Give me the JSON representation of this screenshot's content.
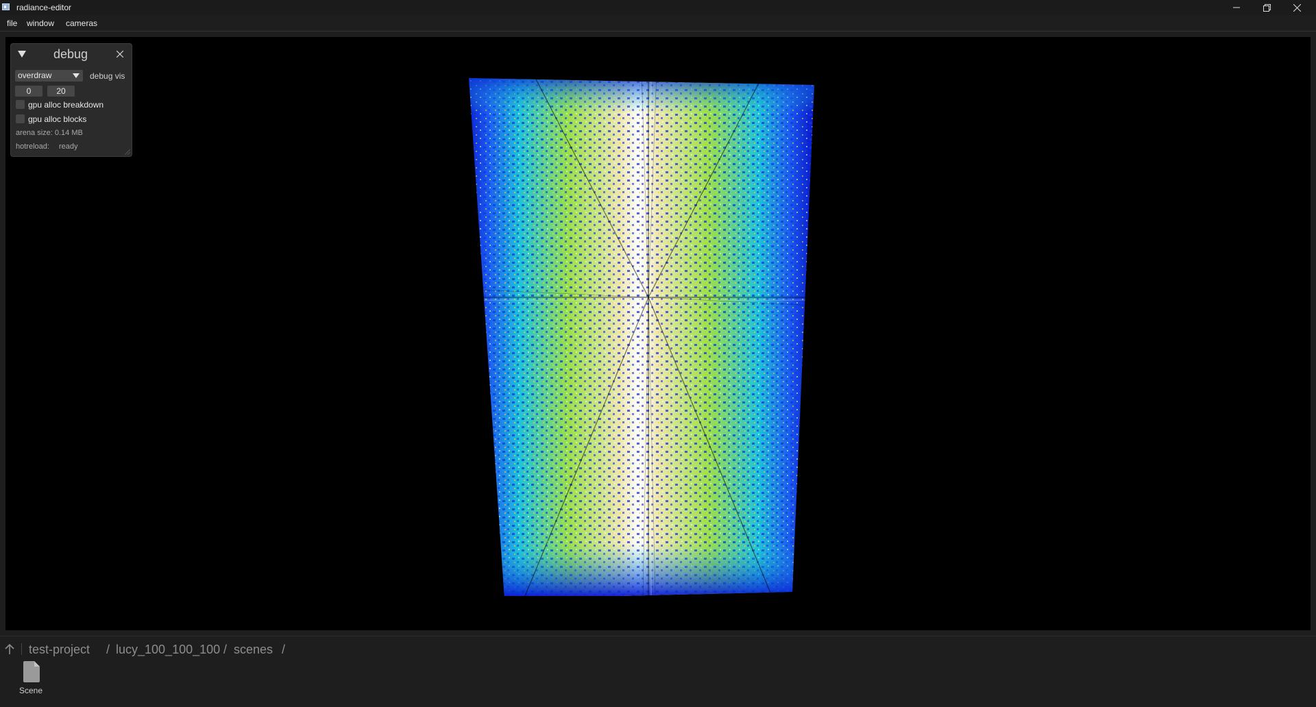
{
  "window": {
    "title": "radiance-editor",
    "minimize_icon": "minimize-icon",
    "restore_icon": "restore-icon",
    "close_icon": "close-icon"
  },
  "menu": {
    "items": [
      {
        "label": "file"
      },
      {
        "label": "window"
      },
      {
        "label": "cameras"
      }
    ]
  },
  "debug_panel": {
    "title": "debug",
    "mode_select": {
      "value": "overdraw"
    },
    "mode_label": "debug vis",
    "range_min": "0",
    "range_max": "20",
    "checkboxes": [
      {
        "label": "gpu alloc breakdown",
        "checked": false
      },
      {
        "label": "gpu alloc blocks",
        "checked": false
      }
    ],
    "arena_size": "arena size: 0.14 MB",
    "hotreload_label": "hotreload:",
    "hotreload_status": "ready"
  },
  "viewport": {
    "visualization": "overdraw heatmap",
    "colors": {
      "low": "#0a1bd6",
      "mid": "#1fc4d8",
      "high": "#9be04a",
      "peak": "#f5e6a8"
    }
  },
  "browser": {
    "up_icon": "up-arrow-icon",
    "breadcrumb": [
      "test-project",
      "lucy_100_100_100",
      "scenes"
    ],
    "separator": "/",
    "files": [
      {
        "name": "Scene",
        "icon": "file-icon"
      }
    ]
  }
}
